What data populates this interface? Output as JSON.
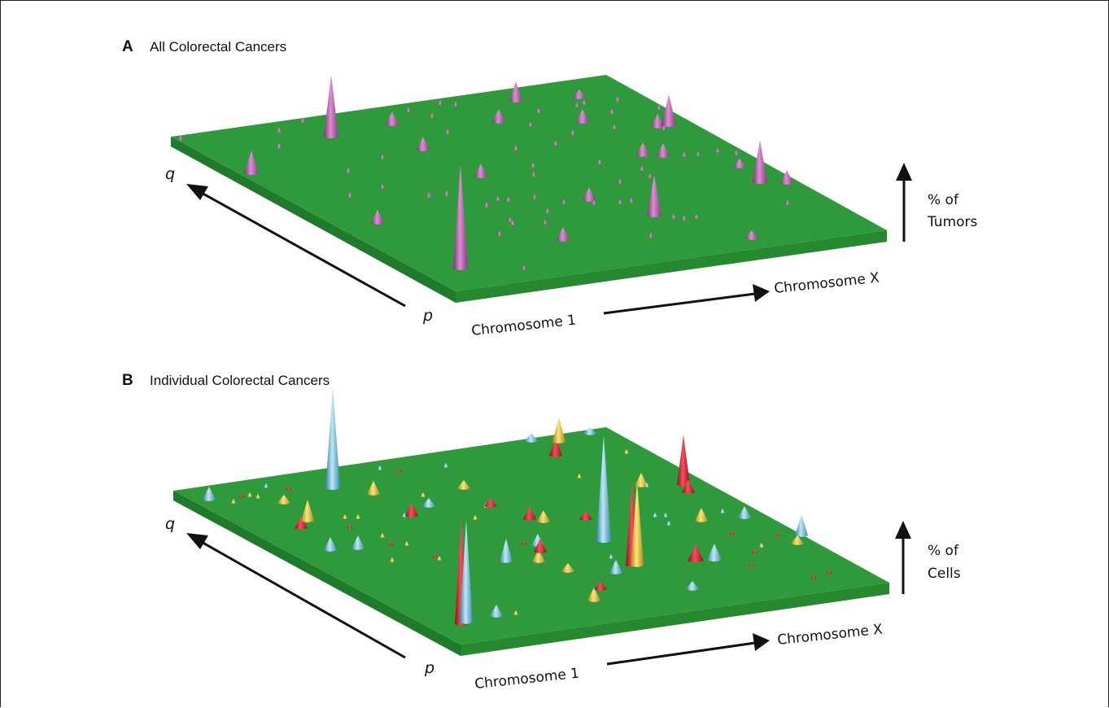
{
  "panels": [
    {
      "letter": "A",
      "title": "All Colorectal Cancers",
      "axis": {
        "q_label": "q",
        "p_label": "p",
        "x_start": "Chromosome 1",
        "x_end": "Chromosome X",
        "z_line1": "% of",
        "z_line2": "Tumors"
      },
      "colors": {
        "surface": "#2f9a3c",
        "cone": "#a8509a"
      }
    },
    {
      "letter": "B",
      "title": "Individual Colorectal Cancers",
      "axis": {
        "q_label": "q",
        "p_label": "p",
        "x_start": "Chromosome 1",
        "x_end": "Chromosome X",
        "z_line1": "% of",
        "z_line2": "Cells"
      },
      "colors": {
        "surface": "#2f9a3c",
        "cone_red": "#c8202a",
        "cone_blue": "#5fb4d4",
        "cone_yellow": "#e0b828"
      }
    }
  ]
}
